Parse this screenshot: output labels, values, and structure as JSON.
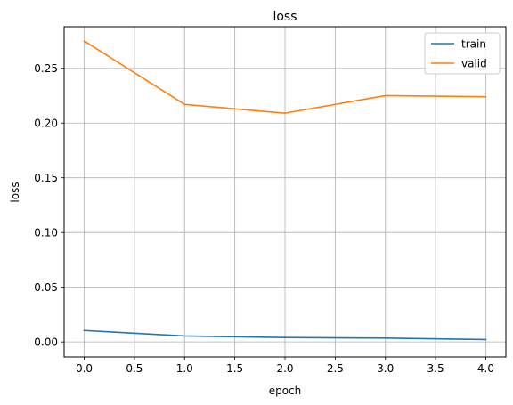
{
  "chart_data": {
    "type": "line",
    "title": "loss",
    "xlabel": "epoch",
    "ylabel": "loss",
    "xlim": [
      -0.2,
      4.2
    ],
    "ylim": [
      -0.0137,
      0.288
    ],
    "xticks": [
      0.0,
      0.5,
      1.0,
      1.5,
      2.0,
      2.5,
      3.0,
      3.5,
      4.0
    ],
    "xtick_labels": [
      "0.0",
      "0.5",
      "1.0",
      "1.5",
      "2.0",
      "2.5",
      "3.0",
      "3.5",
      "4.0"
    ],
    "yticks": [
      0.0,
      0.05,
      0.1,
      0.15,
      0.2,
      0.25
    ],
    "ytick_labels": [
      "0.00",
      "0.05",
      "0.10",
      "0.15",
      "0.20",
      "0.25"
    ],
    "grid": true,
    "legend": "top-right",
    "x": [
      0,
      1,
      2,
      3,
      4
    ],
    "series": [
      {
        "name": "train",
        "color": "#1f77b4",
        "values": [
          0.0105,
          0.0055,
          0.004,
          0.0035,
          0.0022
        ]
      },
      {
        "name": "valid",
        "color": "#ff7f0e",
        "values": [
          0.275,
          0.217,
          0.209,
          0.225,
          0.224
        ]
      }
    ]
  }
}
